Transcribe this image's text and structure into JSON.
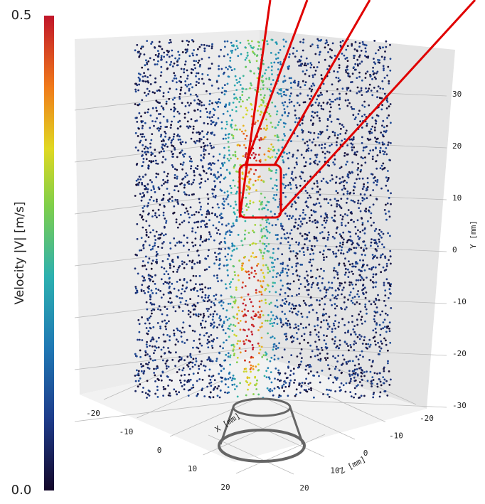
{
  "chart_data": {
    "type": "scatter3d",
    "colorbar": {
      "label": "Velocity |V| [m/s]",
      "lim": [
        0.0,
        0.5
      ],
      "ticks": [
        {
          "value": 0.0,
          "label": "0.0"
        },
        0.5
      ]
    },
    "xaxis": {
      "label": "X [mm]",
      "ticks": [
        -20,
        -10,
        0,
        10,
        20
      ]
    },
    "zaxis": {
      "label": "Z [mm]",
      "ticks": [
        -20,
        -10,
        0,
        10,
        20
      ]
    },
    "yaxis": {
      "label": "Y [mm]",
      "ticks": [
        30,
        20,
        10,
        0,
        -10,
        -20,
        -30
      ]
    },
    "grid": true
  }
}
